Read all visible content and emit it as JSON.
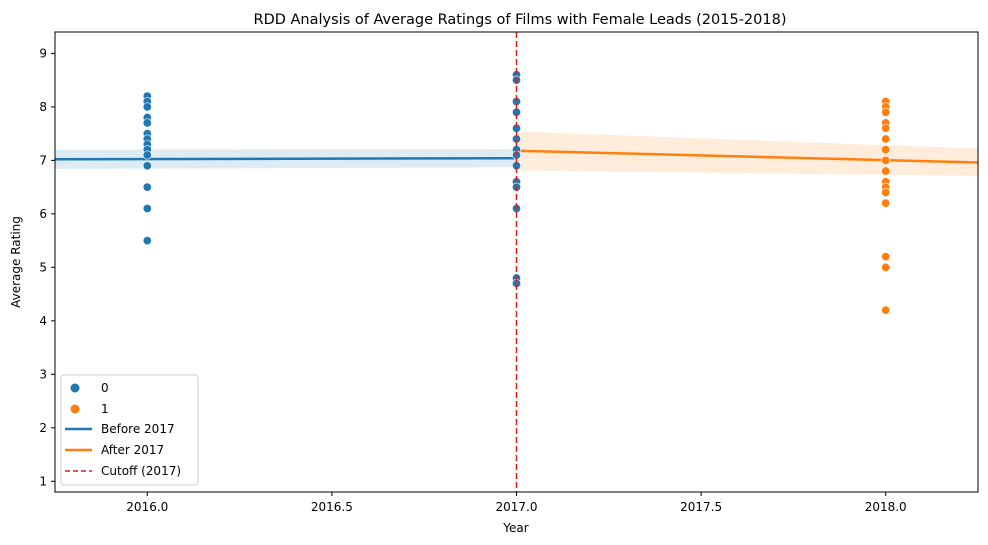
{
  "chart_data": {
    "type": "scatter",
    "title": "RDD Analysis of Average Ratings of Films with Female Leads (2015-2018)",
    "xlabel": "Year",
    "ylabel": "Average Rating",
    "xlim": [
      2015.75,
      2018.25
    ],
    "ylim": [
      0.8,
      9.4
    ],
    "xticks": [
      "2016.0",
      "2016.5",
      "2017.0",
      "2017.5",
      "2018.0"
    ],
    "yticks": [
      "1",
      "2",
      "3",
      "4",
      "5",
      "6",
      "7",
      "8",
      "9"
    ],
    "grid": false,
    "legend_position": "lower-left",
    "series": [
      {
        "name": "0",
        "kind": "scatter",
        "color": "#1f77b4",
        "points": [
          {
            "x": 2016.0,
            "y": 8.2
          },
          {
            "x": 2016.0,
            "y": 8.1
          },
          {
            "x": 2016.0,
            "y": 8.0
          },
          {
            "x": 2016.0,
            "y": 7.8
          },
          {
            "x": 2016.0,
            "y": 7.7
          },
          {
            "x": 2016.0,
            "y": 7.5
          },
          {
            "x": 2016.0,
            "y": 7.4
          },
          {
            "x": 2016.0,
            "y": 7.3
          },
          {
            "x": 2016.0,
            "y": 7.2
          },
          {
            "x": 2016.0,
            "y": 7.1
          },
          {
            "x": 2016.0,
            "y": 6.9
          },
          {
            "x": 2016.0,
            "y": 6.5
          },
          {
            "x": 2016.0,
            "y": 6.1
          },
          {
            "x": 2016.0,
            "y": 5.5
          },
          {
            "x": 2017.0,
            "y": 8.6
          },
          {
            "x": 2017.0,
            "y": 8.5
          },
          {
            "x": 2017.0,
            "y": 8.1
          },
          {
            "x": 2017.0,
            "y": 7.9
          },
          {
            "x": 2017.0,
            "y": 7.6
          },
          {
            "x": 2017.0,
            "y": 7.4
          },
          {
            "x": 2017.0,
            "y": 7.2
          },
          {
            "x": 2017.0,
            "y": 7.1
          },
          {
            "x": 2017.0,
            "y": 6.9
          },
          {
            "x": 2017.0,
            "y": 6.6
          },
          {
            "x": 2017.0,
            "y": 6.5
          },
          {
            "x": 2017.0,
            "y": 6.1
          },
          {
            "x": 2017.0,
            "y": 4.8
          },
          {
            "x": 2017.0,
            "y": 4.7
          }
        ]
      },
      {
        "name": "1",
        "kind": "scatter",
        "color": "#ff7f0e",
        "points": [
          {
            "x": 2018.0,
            "y": 8.1
          },
          {
            "x": 2018.0,
            "y": 8.0
          },
          {
            "x": 2018.0,
            "y": 7.9
          },
          {
            "x": 2018.0,
            "y": 7.7
          },
          {
            "x": 2018.0,
            "y": 7.6
          },
          {
            "x": 2018.0,
            "y": 7.4
          },
          {
            "x": 2018.0,
            "y": 7.2
          },
          {
            "x": 2018.0,
            "y": 7.0
          },
          {
            "x": 2018.0,
            "y": 6.8
          },
          {
            "x": 2018.0,
            "y": 6.6
          },
          {
            "x": 2018.0,
            "y": 6.5
          },
          {
            "x": 2018.0,
            "y": 6.4
          },
          {
            "x": 2018.0,
            "y": 6.2
          },
          {
            "x": 2018.0,
            "y": 5.2
          },
          {
            "x": 2018.0,
            "y": 5.0
          },
          {
            "x": 2018.0,
            "y": 4.2
          }
        ]
      },
      {
        "name": "Before 2017",
        "kind": "regression",
        "color": "#1f77b4",
        "x": [
          2015.75,
          2017.0
        ],
        "y": [
          7.02,
          7.04
        ],
        "ci_lower": [
          6.84,
          6.87
        ],
        "ci_upper": [
          7.2,
          7.21
        ]
      },
      {
        "name": "After 2017",
        "kind": "regression",
        "color": "#ff7f0e",
        "x": [
          2017.0,
          2018.25
        ],
        "y": [
          7.18,
          6.96
        ],
        "ci_lower": [
          6.81,
          6.71
        ],
        "ci_upper": [
          7.54,
          7.22
        ]
      },
      {
        "name": "Cutoff (2017)",
        "kind": "vline",
        "color": "#e31a1c",
        "x": 2017.0
      }
    ]
  }
}
